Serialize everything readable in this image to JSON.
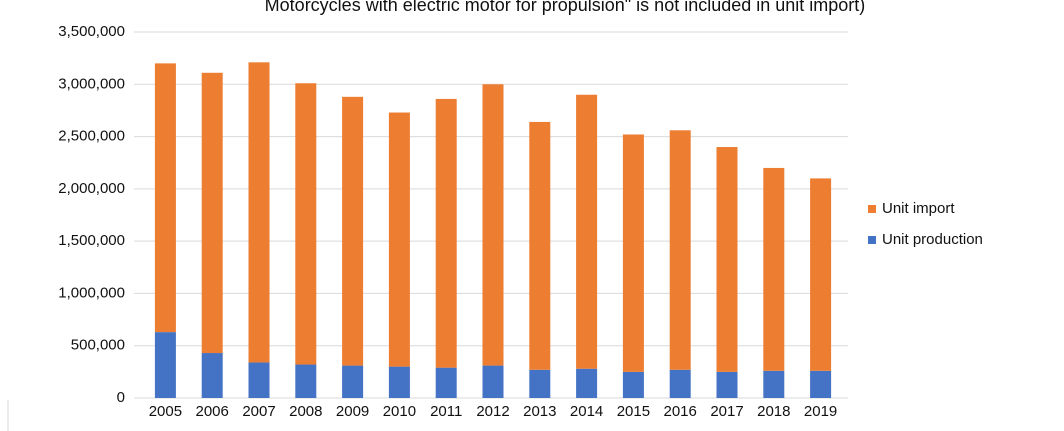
{
  "chart_data": {
    "type": "stacked_bar",
    "title": "Motorcycles with electric motor for propulsion\" is not included in unit import)",
    "categories": [
      "2005",
      "2006",
      "2007",
      "2008",
      "2009",
      "2010",
      "2011",
      "2012",
      "2013",
      "2014",
      "2015",
      "2016",
      "2017",
      "2018",
      "2019"
    ],
    "series": [
      {
        "name": "Unit production",
        "color": "#4472c4",
        "values": [
          630000,
          430000,
          340000,
          320000,
          310000,
          300000,
          290000,
          310000,
          270000,
          280000,
          250000,
          270000,
          250000,
          260000,
          260000
        ]
      },
      {
        "name": "Unit import",
        "color": "#ed7d31",
        "values": [
          2570000,
          2680000,
          2870000,
          2690000,
          2570000,
          2430000,
          2570000,
          2690000,
          2370000,
          2620000,
          2270000,
          2290000,
          2150000,
          1940000,
          1840000
        ]
      }
    ],
    "ylim": [
      0,
      3500000
    ],
    "yticks": [
      0,
      {
        "value": 500000,
        "label": "500,000"
      },
      {
        "value": 1000000,
        "label": "1,000,000"
      },
      {
        "value": 1500000,
        "label": "1,500,000"
      },
      {
        "value": 2000000,
        "label": "2,000,000"
      },
      {
        "value": 2500000,
        "label": "2,500,000"
      },
      {
        "value": 3000000,
        "label": "3,000,000"
      },
      {
        "value": 3500000,
        "label": "3,500,000"
      }
    ],
    "grid": true,
    "legend": "right"
  }
}
